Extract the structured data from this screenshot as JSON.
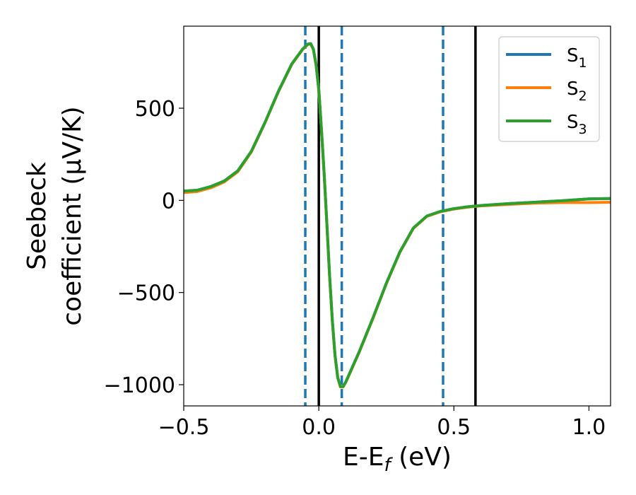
{
  "chart_data": {
    "type": "line",
    "xlabel": "E-E_f (eV)",
    "ylabel_lines": [
      "Seebeck",
      "coefficient  (μV/K)"
    ],
    "xlim": [
      -0.5,
      1.08
    ],
    "ylim": [
      -1115,
      945
    ],
    "xticks": [
      -0.5,
      0.0,
      0.5,
      1.0
    ],
    "xtick_labels": [
      "−0.5",
      "0.0",
      "0.5",
      "1.0"
    ],
    "yticks": [
      -1000,
      -500,
      0,
      500
    ],
    "ytick_labels": [
      "−1000",
      "−500",
      "0",
      "500"
    ],
    "grid": false,
    "legend_position": "top-right",
    "vlines": [
      {
        "x": -0.05,
        "style": "dashed",
        "color": "#1f77b4"
      },
      {
        "x": 0.0,
        "style": "solid",
        "color": "#000000"
      },
      {
        "x": 0.085,
        "style": "dashed",
        "color": "#1f77b4"
      },
      {
        "x": 0.46,
        "style": "dashed",
        "color": "#1f77b4"
      },
      {
        "x": 0.58,
        "style": "solid",
        "color": "#000000"
      }
    ],
    "series": [
      {
        "name": "S1",
        "color": "#1f77b4",
        "x": [
          -0.5,
          -0.45,
          -0.4,
          -0.35,
          -0.3,
          -0.25,
          -0.2,
          -0.15,
          -0.1,
          -0.06,
          -0.04,
          -0.03,
          -0.02,
          -0.01,
          0.0,
          0.01,
          0.02,
          0.03,
          0.04,
          0.05,
          0.06,
          0.07,
          0.08,
          0.09,
          0.1,
          0.15,
          0.2,
          0.25,
          0.3,
          0.35,
          0.4,
          0.45,
          0.5,
          0.55,
          0.6,
          0.7,
          0.8,
          0.9,
          1.0,
          1.08
        ],
        "y": [
          50,
          55,
          75,
          105,
          160,
          265,
          420,
          590,
          740,
          820,
          848,
          850,
          820,
          735,
          600,
          380,
          140,
          -130,
          -410,
          -650,
          -840,
          -960,
          -1010,
          -1010,
          -985,
          -820,
          -640,
          -450,
          -280,
          -150,
          -85,
          -60,
          -45,
          -35,
          -28,
          -18,
          -10,
          -2,
          8,
          10
        ]
      },
      {
        "name": "S2",
        "color": "#ff7f0e",
        "x": [
          -0.5,
          -0.45,
          -0.4,
          -0.35,
          -0.3,
          -0.25,
          -0.2,
          -0.15,
          -0.1,
          -0.06,
          -0.04,
          -0.03,
          -0.02,
          -0.01,
          0.0,
          0.01,
          0.02,
          0.03,
          0.04,
          0.05,
          0.06,
          0.07,
          0.08,
          0.09,
          0.1,
          0.15,
          0.2,
          0.25,
          0.3,
          0.35,
          0.4,
          0.45,
          0.5,
          0.55,
          0.6,
          0.7,
          0.8,
          0.9,
          1.0,
          1.08
        ],
        "y": [
          42,
          48,
          68,
          100,
          155,
          262,
          418,
          588,
          738,
          818,
          846,
          848,
          818,
          733,
          598,
          378,
          138,
          -132,
          -412,
          -652,
          -842,
          -962,
          -1012,
          -1012,
          -987,
          -822,
          -642,
          -452,
          -282,
          -152,
          -87,
          -62,
          -47,
          -37,
          -30,
          -22,
          -15,
          -12,
          -12,
          -10
        ]
      },
      {
        "name": "S3",
        "color": "#2ca02c",
        "x": [
          -0.5,
          -0.45,
          -0.4,
          -0.35,
          -0.3,
          -0.25,
          -0.2,
          -0.15,
          -0.1,
          -0.06,
          -0.04,
          -0.03,
          -0.02,
          -0.01,
          0.0,
          0.01,
          0.02,
          0.03,
          0.04,
          0.05,
          0.06,
          0.07,
          0.08,
          0.09,
          0.1,
          0.15,
          0.2,
          0.25,
          0.3,
          0.35,
          0.4,
          0.45,
          0.5,
          0.55,
          0.6,
          0.7,
          0.8,
          0.9,
          1.0,
          1.08
        ],
        "y": [
          50,
          55,
          75,
          105,
          160,
          265,
          420,
          590,
          740,
          820,
          848,
          850,
          820,
          735,
          600,
          380,
          140,
          -130,
          -410,
          -650,
          -840,
          -960,
          -1010,
          -1010,
          -985,
          -820,
          -640,
          -450,
          -280,
          -150,
          -85,
          -60,
          -45,
          -35,
          -28,
          -18,
          -10,
          -2,
          8,
          10
        ]
      }
    ],
    "legend_entries": [
      {
        "base": "S",
        "sub": "1",
        "color": "#1f77b4"
      },
      {
        "base": "S",
        "sub": "2",
        "color": "#ff7f0e"
      },
      {
        "base": "S",
        "sub": "3",
        "color": "#2ca02c"
      }
    ]
  }
}
